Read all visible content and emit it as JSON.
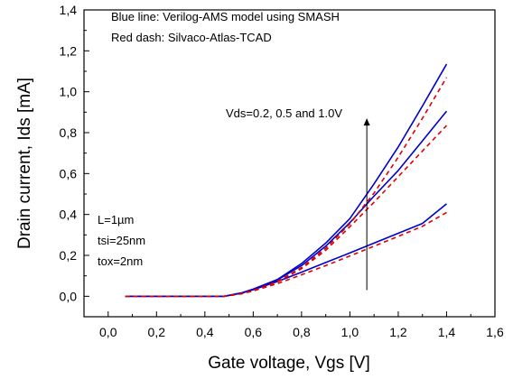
{
  "chart_data": {
    "type": "line",
    "title": "",
    "xlabel": "Gate voltage, Vgs [V]",
    "ylabel": "Drain current, Ids [mA]",
    "xlim": [
      -0.1,
      1.6
    ],
    "ylim": [
      -0.1,
      1.4
    ],
    "xticks": [
      "0,0",
      "0,2",
      "0,4",
      "0,6",
      "0,8",
      "1,0",
      "1,2",
      "1,4",
      "1,6"
    ],
    "yticks": [
      "0,0",
      "0,2",
      "0,4",
      "0,6",
      "0,8",
      "1,0",
      "1,2",
      "1,4"
    ],
    "grid": false,
    "x": [
      0.07,
      0.2,
      0.3,
      0.4,
      0.48,
      0.55,
      0.6,
      0.7,
      0.8,
      0.9,
      1.0,
      1.1,
      1.2,
      1.3,
      1.4
    ],
    "series": [
      {
        "name": "Verilog-AMS model using SMASH (Vds=0.2)",
        "color": "#0000cc",
        "dash": "solid",
        "values": [
          0.0,
          0.0,
          0.0,
          0.0,
          0.0,
          0.015,
          0.032,
          0.072,
          0.118,
          0.165,
          0.212,
          0.26,
          0.308,
          0.356,
          0.452
        ]
      },
      {
        "name": "Verilog-AMS model using SMASH (Vds=0.5)",
        "color": "#0000cc",
        "dash": "solid",
        "values": [
          0.0,
          0.0,
          0.0,
          0.0,
          0.0,
          0.016,
          0.034,
          0.08,
          0.15,
          0.245,
          0.36,
          0.49,
          0.615,
          0.76,
          0.905
        ]
      },
      {
        "name": "Verilog-AMS model using SMASH (Vds=1.0)",
        "color": "#0000cc",
        "dash": "solid",
        "values": [
          0.0,
          0.0,
          0.0,
          0.0,
          0.0,
          0.016,
          0.035,
          0.082,
          0.16,
          0.26,
          0.38,
          0.55,
          0.73,
          0.93,
          1.135
        ]
      },
      {
        "name": "Silvaco-Atlas-TCAD (Vds=0.2)",
        "color": "#e00000",
        "dash": "5,4",
        "values": [
          0.0,
          0.0,
          0.0,
          0.0,
          0.0,
          0.012,
          0.026,
          0.062,
          0.105,
          0.15,
          0.197,
          0.245,
          0.293,
          0.342,
          0.41
        ]
      },
      {
        "name": "Silvaco-Atlas-TCAD (Vds=0.5)",
        "color": "#e00000",
        "dash": "5,4",
        "values": [
          0.0,
          0.0,
          0.0,
          0.0,
          0.0,
          0.012,
          0.028,
          0.07,
          0.135,
          0.225,
          0.34,
          0.46,
          0.585,
          0.71,
          0.835
        ]
      },
      {
        "name": "Silvaco-Atlas-TCAD (Vds=1.0)",
        "color": "#e00000",
        "dash": "5,4",
        "values": [
          0.0,
          0.0,
          0.0,
          0.0,
          0.0,
          0.012,
          0.028,
          0.072,
          0.14,
          0.235,
          0.355,
          0.505,
          0.68,
          0.87,
          1.07
        ]
      }
    ],
    "annotations": {
      "legend_line1": "Blue line: Verilog-AMS model using SMASH",
      "legend_line2": "Red dash: Silvaco-Atlas-TCAD",
      "vds_label": "Vds=0.2, 0.5 and 1.0V",
      "param_line1": "L=1µm",
      "param_line2": "tsi=25nm",
      "param_line3": "tox=2nm"
    },
    "arrow": {
      "x": 1.07,
      "y_from": 0.03,
      "y_to": 0.87
    }
  }
}
